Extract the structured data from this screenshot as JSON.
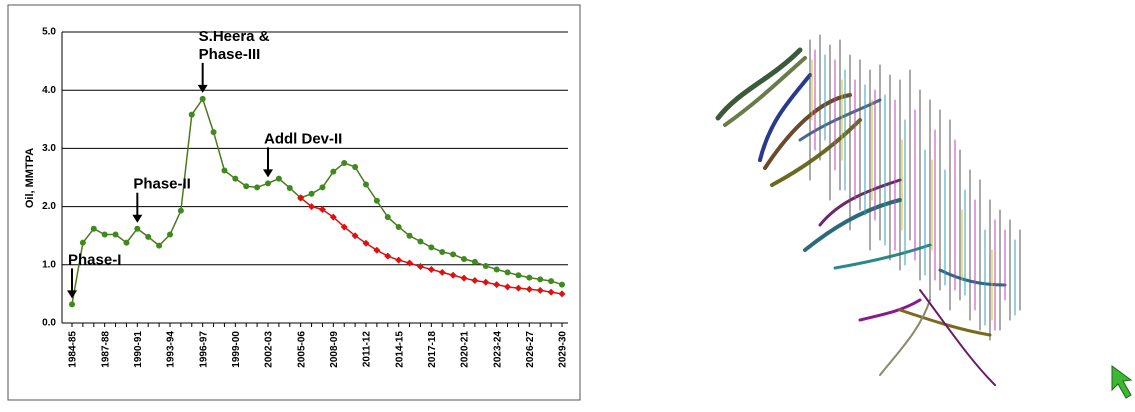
{
  "chart_data": {
    "type": "line",
    "ylabel": "Oil, MMTPA",
    "categories": [
      "1984-85",
      null,
      null,
      "1987-88",
      null,
      null,
      "1990-91",
      null,
      null,
      "1993-94",
      null,
      null,
      "1996-97",
      null,
      null,
      "1999-00",
      null,
      null,
      "2002-03",
      null,
      null,
      "2005-06",
      null,
      null,
      "2008-09",
      null,
      null,
      "2011-12",
      null,
      null,
      "2014-15",
      null,
      null,
      "2017-18",
      null,
      null,
      "2020-21",
      null,
      null,
      "2023-24",
      null,
      null,
      "2026-27",
      null,
      null,
      "2029-30"
    ],
    "series": [
      {
        "color": "#4d7a1c",
        "marker_color": "#3f8a1e",
        "marker": "circle",
        "values": [
          0.32,
          1.38,
          1.62,
          1.52,
          1.52,
          1.38,
          1.62,
          1.48,
          1.33,
          1.52,
          1.93,
          3.58,
          3.85,
          3.28,
          2.62,
          2.48,
          2.35,
          2.33,
          2.4,
          2.48,
          2.32,
          2.15,
          2.22,
          2.33,
          2.6,
          2.75,
          2.68,
          2.38,
          2.1,
          1.82,
          1.65,
          1.5,
          1.4,
          1.3,
          1.22,
          1.18,
          1.1,
          1.05,
          0.98,
          0.92,
          0.87,
          0.82,
          0.78,
          0.75,
          0.72,
          0.66
        ]
      },
      {
        "color": "#e01010",
        "marker_color": "#e01010",
        "marker": "diamond",
        "values": [
          null,
          null,
          null,
          null,
          null,
          null,
          null,
          null,
          null,
          null,
          null,
          null,
          null,
          null,
          null,
          null,
          null,
          null,
          null,
          null,
          null,
          2.15,
          2.0,
          1.95,
          1.82,
          1.65,
          1.5,
          1.37,
          1.25,
          1.15,
          1.08,
          1.03,
          0.97,
          0.92,
          0.87,
          0.82,
          0.77,
          0.73,
          0.7,
          0.66,
          0.62,
          0.6,
          0.58,
          0.56,
          0.53,
          0.5
        ]
      }
    ],
    "ylim": [
      0,
      5
    ],
    "yticks": [
      {
        "value": 0,
        "label": "0.0"
      },
      {
        "value": 1,
        "label": "1.0"
      },
      {
        "value": 2,
        "label": "2.0"
      },
      {
        "value": 3,
        "label": "3.0"
      },
      {
        "value": 4,
        "label": "4.0"
      },
      {
        "value": 5,
        "label": "5.0"
      }
    ],
    "grid": true,
    "annotations": [
      {
        "lines": [
          "Phase-I"
        ],
        "x": "1984-85"
      },
      {
        "lines": [
          "Phase-II"
        ],
        "x": "1990-91"
      },
      {
        "lines": [
          "S.Heera &",
          "Phase-III"
        ],
        "x": "1996-97"
      },
      {
        "lines": [
          "Addl Dev-II"
        ],
        "x": "2002-03"
      }
    ]
  }
}
